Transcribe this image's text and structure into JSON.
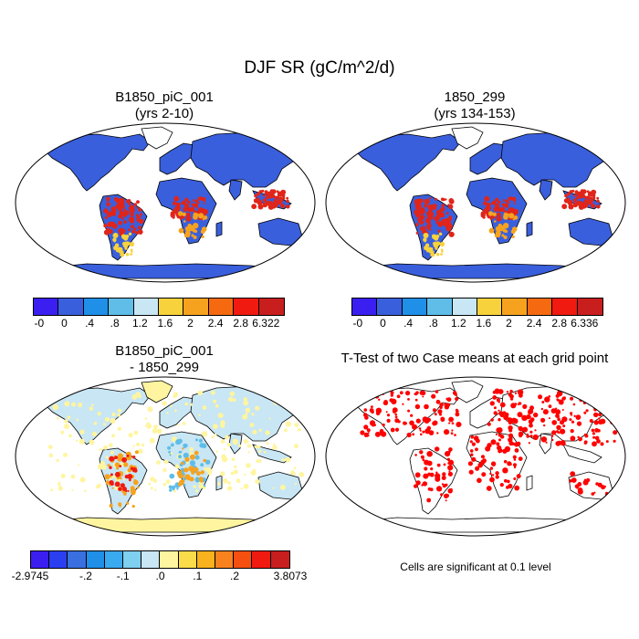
{
  "title": "DJF SR (gC/m^2/d)",
  "panels": {
    "p1": {
      "title_line1": "B1850_piC_001",
      "title_line2": "(yrs 2-10)"
    },
    "p2": {
      "title_line1": "1850_299",
      "title_line2": "(yrs 134-153)"
    },
    "p3": {
      "title_line1": "B1850_piC_001",
      "title_line2": "- 1850_299"
    },
    "p4": {
      "title_line1": "T-Test of two Case means at each grid point",
      "note": "Cells are significant at 0.1 level"
    }
  },
  "colorbars": {
    "cb1": {
      "colors": [
        "#3a1ff0",
        "#3a5fdc",
        "#1f8fe8",
        "#5fbde8",
        "#c8e6f4",
        "#f7d23c",
        "#f7a21e",
        "#f56a10",
        "#f01a10",
        "#c81e1e"
      ],
      "labels": [
        "-0",
        "0",
        ".4",
        ".8",
        "1.2",
        "1.6",
        "2",
        "2.4",
        "2.8",
        "6.322"
      ]
    },
    "cb2": {
      "colors": [
        "#3a1ff0",
        "#3a5fdc",
        "#1f8fe8",
        "#5fbde8",
        "#c8e6f4",
        "#f7d23c",
        "#f7a21e",
        "#f56a10",
        "#f01a10",
        "#c81e1e"
      ],
      "labels": [
        "-0",
        "0",
        ".4",
        ".8",
        "1.2",
        "1.6",
        "2",
        "2.4",
        "2.8",
        "6.336"
      ]
    },
    "cb3": {
      "colors": [
        "#3a1ff0",
        "#2a3ff0",
        "#3a6fe0",
        "#1f8fe8",
        "#3aaaf0",
        "#7fcff0",
        "#c8e6f4",
        "#fff5a0",
        "#fadc4a",
        "#f7b21e",
        "#f7821e",
        "#f55010",
        "#f01a10",
        "#c81e1e"
      ],
      "labels": [
        "-2.9745",
        "-.2",
        "-.1",
        ".0",
        ".1",
        ".2",
        "3.8073"
      ]
    }
  },
  "map_colors": {
    "ocean": "#ffffff",
    "coast": "#000000",
    "p1_base": "#3a5fdc",
    "p1_tropics": "#e0251a",
    "p3_base": "#c8e6f4",
    "p3_warm": "#fff5a0",
    "p4_sig": "#ff0000"
  }
}
